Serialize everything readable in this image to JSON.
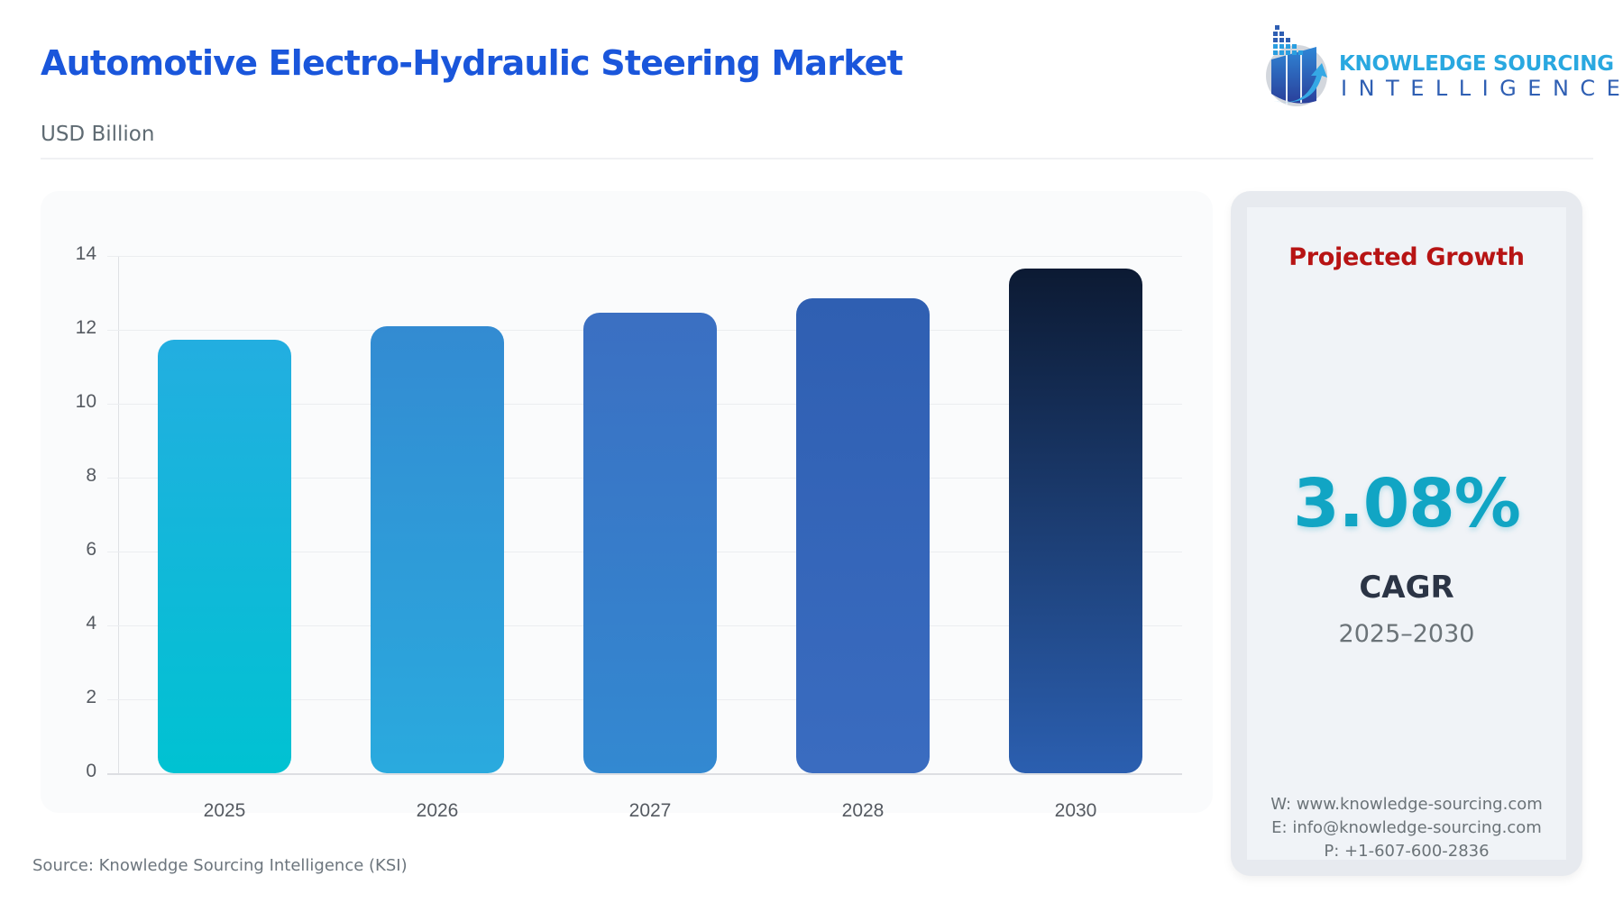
{
  "header": {
    "title": "Automotive Electro-Hydraulic Steering Market",
    "subtitle": "USD Billion"
  },
  "logo": {
    "line1": "KNOWLEDGE SOURCING",
    "line2": "INTELLIGENCE",
    "icon": "bar-chart-arrow-globe-icon"
  },
  "chart_data": {
    "type": "bar",
    "title": "Automotive Electro-Hydraulic Steering Market",
    "subtitle": "USD Billion",
    "categories": [
      "2025",
      "2026",
      "2027",
      "2028",
      "2030"
    ],
    "values": [
      11.72,
      12.1,
      12.46,
      12.85,
      13.66
    ],
    "xlabel": "",
    "ylabel": "USD Billion",
    "ylim": [
      0,
      14
    ],
    "yticks": [
      0,
      2,
      4,
      6,
      8,
      10,
      12,
      14
    ],
    "grid": true,
    "legend": null,
    "bar_colors": [
      {
        "top": "#23aee0",
        "bottom": "#00c2d2"
      },
      {
        "top": "#338bd2",
        "bottom": "#2aaade"
      },
      {
        "top": "#3b6fc2",
        "bottom": "#3389d1"
      },
      {
        "top": "#2f5fb2",
        "bottom": "#3a6cc0"
      },
      {
        "top": "#0c1a33",
        "bottom": "#2b5fb0"
      }
    ]
  },
  "source": "Source: Knowledge Sourcing Intelligence (KSI)",
  "growth": {
    "label": "Projected Growth",
    "value": "3.08%",
    "metric": "CAGR",
    "period": "2025–2030",
    "colors": {
      "label": "#b71414",
      "value": "#11a5c4",
      "metric": "#2b3445"
    }
  },
  "contact": {
    "web": "W: www.knowledge-sourcing.com",
    "email": "E: info@knowledge-sourcing.com",
    "phone": "P: +1-607-600-2836"
  }
}
